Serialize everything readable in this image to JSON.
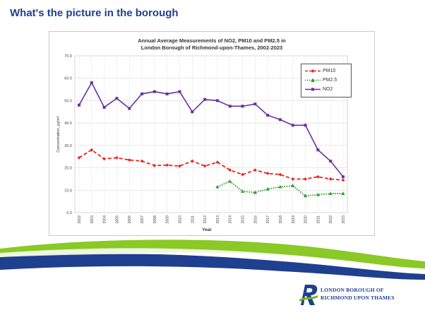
{
  "slide": {
    "title": "What's the picture in the borough"
  },
  "chart_data": {
    "type": "line",
    "title_line1": "Annual Average Measurements of NO2, PM10 and PM2.5 in",
    "title_line2": "London Borough of Richmond-upon-Thames, 2002-2023",
    "xlabel": "Year",
    "ylabel": "Concentration, µg/m³",
    "ylim": [
      0,
      70
    ],
    "yticks": [
      "0.0",
      "10.0",
      "20.0",
      "30.0",
      "40.0",
      "50.0",
      "60.0",
      "70.0"
    ],
    "grid": true,
    "legend_position": "top-right",
    "categories": [
      "2002",
      "2003",
      "2004",
      "2005",
      "2006",
      "2007",
      "2008",
      "2009",
      "2010",
      "2011",
      "2012",
      "2013",
      "2014",
      "2015",
      "2016",
      "2017",
      "2018",
      "2019",
      "2020",
      "2021",
      "2022",
      "2023"
    ],
    "series": [
      {
        "name": "PM10",
        "color": "#e8251f",
        "style": "dashed",
        "marker": "diamond",
        "values": [
          24.5,
          28,
          24,
          24.5,
          23.5,
          23,
          21,
          21.2,
          20.8,
          23,
          20.8,
          22.5,
          19,
          17,
          19,
          17.5,
          17,
          15,
          15,
          16,
          15,
          14.5
        ]
      },
      {
        "name": "PM2.5",
        "color": "#2ca02c",
        "style": "dotted",
        "marker": "triangle",
        "values": [
          null,
          null,
          null,
          null,
          null,
          null,
          null,
          null,
          null,
          null,
          null,
          11.5,
          14,
          9.5,
          9,
          10.5,
          11.5,
          12,
          7.5,
          8,
          8.5,
          8.5
        ]
      },
      {
        "name": "NO2",
        "color": "#6a2fa0",
        "style": "solid",
        "marker": "square",
        "values": [
          48,
          58,
          47,
          51,
          46.5,
          53,
          54,
          53,
          54,
          45,
          50.5,
          50,
          47.5,
          47.5,
          48.5,
          43.5,
          41.5,
          39,
          39,
          28,
          23,
          16
        ]
      }
    ]
  },
  "logo": {
    "line1": "LONDON BOROUGH OF",
    "line2": "RICHMOND UPON THAMES",
    "colors": {
      "blue": "#1f3f8f",
      "green": "#7ab41d"
    }
  }
}
